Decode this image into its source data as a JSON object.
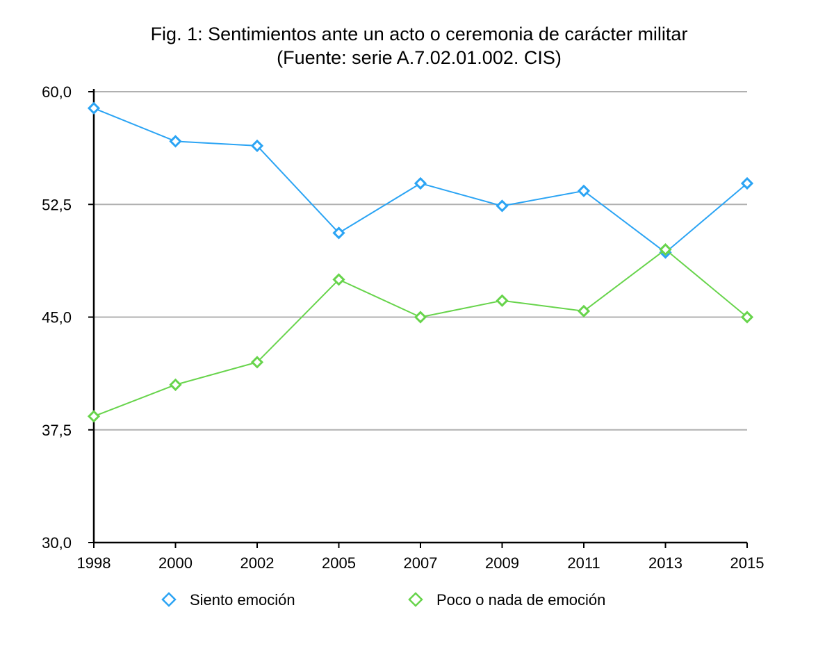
{
  "chart_data": {
    "type": "line",
    "title": "Fig. 1: Sentimientos ante un acto o ceremonia de carácter militar",
    "subtitle": "(Fuente: serie A.7.02.01.002. CIS)",
    "xlabel": "",
    "ylabel": "",
    "categories": [
      "1998",
      "2000",
      "2002",
      "2005",
      "2007",
      "2009",
      "2011",
      "2013",
      "2015"
    ],
    "ylim": [
      30,
      60
    ],
    "yticks": [
      30,
      37.5,
      45,
      52.5,
      60
    ],
    "ytick_labels": [
      "30,0",
      "37,5",
      "45,0",
      "52,5",
      "60,0"
    ],
    "grid": true,
    "legend_position": "bottom",
    "series": [
      {
        "name": "Siento emoción",
        "color": "#2ba4f4",
        "values": [
          58.9,
          56.7,
          56.4,
          50.6,
          53.9,
          52.4,
          53.4,
          49.3,
          53.9
        ]
      },
      {
        "name": "Poco o nada de emoción",
        "color": "#67d44b",
        "values": [
          38.4,
          40.5,
          42.0,
          47.5,
          45.0,
          46.1,
          45.4,
          49.5,
          45.0
        ]
      }
    ]
  }
}
